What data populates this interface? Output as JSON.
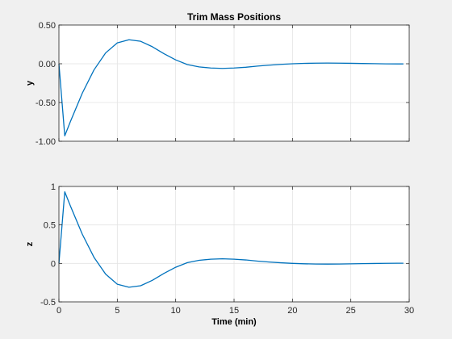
{
  "chart_data": [
    {
      "type": "line",
      "title": "Trim Mass Positions",
      "xlabel": "",
      "ylabel": "y",
      "xlim": [
        0,
        30
      ],
      "ylim": [
        -1.0,
        0.5
      ],
      "xticks": [
        0,
        5,
        10,
        15,
        20,
        25,
        30
      ],
      "xticklabels": [],
      "yticks": [
        -1.0,
        -0.5,
        0.0,
        0.5
      ],
      "yticklabels": [
        "-1.00",
        "-0.50",
        "0.00",
        "0.50"
      ],
      "grid": true,
      "series": [
        {
          "color": "#0072bd",
          "x": [
            0,
            0.5,
            1,
            2,
            3,
            4,
            5,
            6,
            7,
            8,
            9,
            10,
            11,
            12,
            13,
            14,
            15,
            16,
            17,
            18,
            19,
            20,
            21,
            22,
            23,
            24,
            25,
            26,
            27,
            28,
            29,
            29.5
          ],
          "y": [
            0,
            -0.93,
            -0.74,
            -0.38,
            -0.08,
            0.14,
            0.27,
            0.31,
            0.29,
            0.22,
            0.13,
            0.05,
            -0.01,
            -0.04,
            -0.055,
            -0.06,
            -0.055,
            -0.045,
            -0.03,
            -0.018,
            -0.008,
            0.0,
            0.005,
            0.008,
            0.009,
            0.008,
            0.006,
            0.003,
            0.001,
            -0.001,
            -0.002,
            -0.002
          ]
        }
      ]
    },
    {
      "type": "line",
      "title": "",
      "xlabel": "Time (min)",
      "ylabel": "z",
      "xlim": [
        0,
        30
      ],
      "ylim": [
        -0.5,
        1.0
      ],
      "xticks": [
        0,
        5,
        10,
        15,
        20,
        25,
        30
      ],
      "xticklabels": [
        "0",
        "5",
        "10",
        "15",
        "20",
        "25",
        "30"
      ],
      "yticks": [
        -0.5,
        0.0,
        0.5,
        1.0
      ],
      "yticklabels": [
        "-0.5",
        "0",
        "0.5",
        "1"
      ],
      "grid": true,
      "series": [
        {
          "color": "#0072bd",
          "x": [
            0,
            0.5,
            1,
            2,
            3,
            4,
            5,
            6,
            7,
            8,
            9,
            10,
            11,
            12,
            13,
            14,
            15,
            16,
            17,
            18,
            19,
            20,
            21,
            22,
            23,
            24,
            25,
            26,
            27,
            28,
            29,
            29.5
          ],
          "y": [
            0,
            0.93,
            0.74,
            0.38,
            0.08,
            -0.14,
            -0.27,
            -0.31,
            -0.29,
            -0.22,
            -0.13,
            -0.05,
            0.01,
            0.04,
            0.055,
            0.06,
            0.055,
            0.045,
            0.03,
            0.018,
            0.008,
            0.0,
            -0.005,
            -0.008,
            -0.009,
            -0.008,
            -0.006,
            -0.003,
            -0.001,
            0.001,
            0.002,
            0.002
          ]
        }
      ]
    }
  ]
}
